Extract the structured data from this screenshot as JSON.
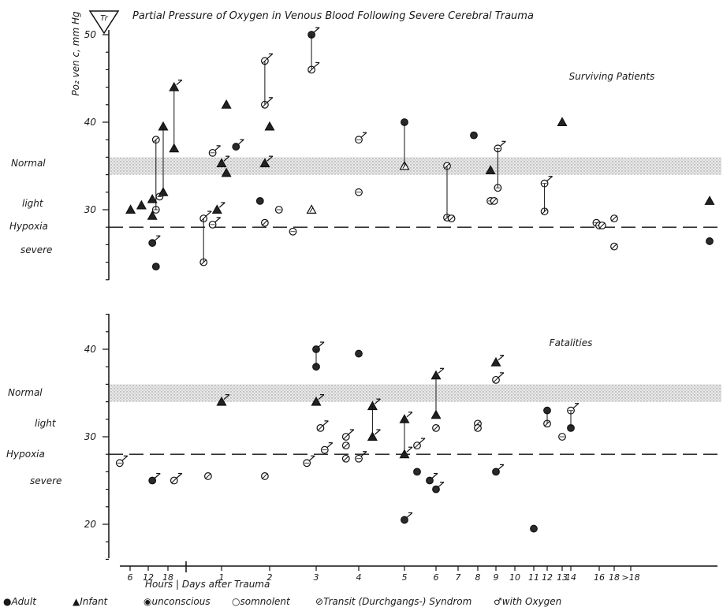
{
  "figure": {
    "badge": "Tr",
    "title": "Partial Pressure of Oxygen in Venous Blood Following Severe Cerebral Trauma",
    "ylabel": "Po₂ ven c, mm Hg",
    "zones": {
      "normal": "Normal",
      "light": "light",
      "hypoxia": "Hypoxia",
      "severe": "severe"
    },
    "x_caption": "Hours | Days after Trauma",
    "legend": [
      "●Adult",
      "▲Infant",
      "◉unconscious",
      "○somnolent",
      "⊘Transit (Durchgangs-) Syndrom",
      "♂with Oxygen"
    ]
  },
  "chart_data": [
    {
      "type": "scatter",
      "title": "Surviving Patients",
      "ylim": [
        22,
        51
      ],
      "yticks": [
        30,
        40,
        50
      ],
      "normal_band": [
        34,
        36
      ],
      "hypoxia_threshold": 28,
      "xticks": [
        "6",
        "12",
        "18",
        "1",
        "2",
        "3",
        "4",
        "5",
        "6",
        "7",
        "8",
        "9",
        "10",
        "11",
        "12",
        "13",
        "14",
        "16",
        "18",
        ">18"
      ],
      "points": [
        {
          "x": "6h",
          "y": 30,
          "symbol": "infant"
        },
        {
          "x": "9h",
          "y": 30.5,
          "symbol": "infant"
        },
        {
          "x": "12h",
          "y": 29.3,
          "symbol": "infant"
        },
        {
          "x": "12h",
          "y": 31.2,
          "symbol": "infant"
        },
        {
          "x": "12h",
          "y": 26.2,
          "symbol": "adult",
          "oxygen": true
        },
        {
          "x": "13h",
          "y": 23.5,
          "symbol": "adult"
        },
        {
          "x": "13h",
          "y": 38,
          "symbol": "transit"
        },
        {
          "x": "13h",
          "y": 30,
          "symbol": "somnolent"
        },
        {
          "x": "14h",
          "y": 31.5,
          "symbol": "somnolent"
        },
        {
          "x": "15h",
          "y": 39.5,
          "symbol": "infant"
        },
        {
          "x": "15h",
          "y": 32,
          "symbol": "infant"
        },
        {
          "x": "18h",
          "y": 44,
          "symbol": "infant",
          "oxygen": true
        },
        {
          "x": "18h",
          "y": 37,
          "symbol": "infant"
        },
        {
          "x": "day 0.6",
          "y": 29,
          "symbol": "transit",
          "oxygen": true
        },
        {
          "x": "day 0.6",
          "y": 24,
          "symbol": "transit"
        },
        {
          "x": "day 0.8",
          "y": 36.5,
          "symbol": "somnolent",
          "oxygen": true
        },
        {
          "x": "day 0.8",
          "y": 28.3,
          "symbol": "somnolent",
          "oxygen": true
        },
        {
          "x": "day 0.9",
          "y": 30,
          "symbol": "infant",
          "oxygen": true
        },
        {
          "x": "1",
          "y": 35.3,
          "symbol": "infant",
          "oxygen": true
        },
        {
          "x": "1.1",
          "y": 42,
          "symbol": "infant"
        },
        {
          "x": "1.1",
          "y": 34.2,
          "symbol": "infant"
        },
        {
          "x": "1.3",
          "y": 37.2,
          "symbol": "adult",
          "oxygen": true
        },
        {
          "x": "1.8",
          "y": 31,
          "symbol": "adult"
        },
        {
          "x": "1.9",
          "y": 47,
          "symbol": "transit",
          "oxygen": true
        },
        {
          "x": "1.9",
          "y": 42,
          "symbol": "transit",
          "oxygen": true
        },
        {
          "x": "1.9",
          "y": 35.3,
          "symbol": "infant",
          "oxygen": true
        },
        {
          "x": "1.9",
          "y": 28.5,
          "symbol": "transit"
        },
        {
          "x": "2",
          "y": 39.5,
          "symbol": "infant"
        },
        {
          "x": "2.2",
          "y": 30,
          "symbol": "somnolent"
        },
        {
          "x": "2.5",
          "y": 27.5,
          "symbol": "somnolent"
        },
        {
          "x": "2.9",
          "y": 50,
          "symbol": "adult",
          "oxygen": true
        },
        {
          "x": "2.9",
          "y": 46,
          "symbol": "transit",
          "oxygen": true
        },
        {
          "x": "2.9",
          "y": 30,
          "symbol": "infant",
          "transit": true
        },
        {
          "x": "4",
          "y": 38,
          "symbol": "somnolent",
          "oxygen": true
        },
        {
          "x": "4",
          "y": 32,
          "symbol": "somnolent"
        },
        {
          "x": "5",
          "y": 40,
          "symbol": "adult"
        },
        {
          "x": "5",
          "y": 35,
          "symbol": "infant",
          "transit": true
        },
        {
          "x": "6.5",
          "y": 35,
          "symbol": "transit"
        },
        {
          "x": "6.5",
          "y": 29.1,
          "symbol": "transit"
        },
        {
          "x": "6.7",
          "y": 29,
          "symbol": "transit"
        },
        {
          "x": "7.8",
          "y": 38.5,
          "symbol": "adult"
        },
        {
          "x": "8.7",
          "y": 34.5,
          "symbol": "infant"
        },
        {
          "x": "8.7",
          "y": 31,
          "symbol": "somnolent"
        },
        {
          "x": "8.9",
          "y": 31,
          "symbol": "transit"
        },
        {
          "x": "9.1",
          "y": 37,
          "symbol": "somnolent",
          "oxygen": true
        },
        {
          "x": "9.1",
          "y": 32.5,
          "symbol": "somnolent"
        },
        {
          "x": "11.8",
          "y": 33,
          "symbol": "somnolent",
          "oxygen": true
        },
        {
          "x": "11.8",
          "y": 29.8,
          "symbol": "transit"
        },
        {
          "x": "13",
          "y": 40,
          "symbol": "infant"
        },
        {
          "x": "15.8",
          "y": 28.5,
          "symbol": "somnolent"
        },
        {
          "x": "16",
          "y": 28.2,
          "symbol": "somnolent"
        },
        {
          "x": "16.4",
          "y": 28.2,
          "symbol": "transit"
        },
        {
          "x": "18",
          "y": 29,
          "symbol": "transit"
        },
        {
          "x": "18",
          "y": 25.8,
          "symbol": "transit"
        },
        {
          "x": ">18",
          "y": 31,
          "symbol": "infant"
        },
        {
          "x": ">18",
          "y": 26.4,
          "symbol": "adult"
        }
      ]
    },
    {
      "type": "scatter",
      "title": "Fatalities",
      "ylim": [
        16,
        44
      ],
      "yticks": [
        20,
        30,
        40
      ],
      "normal_band": [
        34,
        36
      ],
      "hypoxia_threshold": 28,
      "xticks": [
        "6",
        "12",
        "18",
        "1",
        "2",
        "3",
        "4",
        "5",
        "6",
        "7",
        "8",
        "9",
        "10",
        "11",
        "12",
        "13",
        "14",
        "16",
        "18",
        ">18"
      ],
      "points": [
        {
          "x": "3h",
          "y": 27,
          "symbol": "somnolent",
          "oxygen": true
        },
        {
          "x": "12h",
          "y": 25,
          "symbol": "adult",
          "oxygen": true
        },
        {
          "x": "18h",
          "y": 25,
          "symbol": "transit",
          "oxygen": true
        },
        {
          "x": "day 0.7",
          "y": 25.5,
          "symbol": "transit"
        },
        {
          "x": "1",
          "y": 34,
          "symbol": "infant",
          "oxygen": true
        },
        {
          "x": "1.9",
          "y": 25.5,
          "symbol": "transit"
        },
        {
          "x": "2.8",
          "y": 27,
          "symbol": "somnolent",
          "oxygen": true
        },
        {
          "x": "3",
          "y": 40,
          "symbol": "adult",
          "oxygen": true
        },
        {
          "x": "3",
          "y": 38,
          "symbol": "adult"
        },
        {
          "x": "3",
          "y": 34,
          "symbol": "infant",
          "oxygen": true
        },
        {
          "x": "3.1",
          "y": 31,
          "symbol": "transit",
          "oxygen": true
        },
        {
          "x": "3.2",
          "y": 28.5,
          "symbol": "somnolent",
          "oxygen": true
        },
        {
          "x": "3.7",
          "y": 30,
          "symbol": "transit",
          "oxygen": true
        },
        {
          "x": "3.7",
          "y": 29,
          "symbol": "transit"
        },
        {
          "x": "3.7",
          "y": 27.5,
          "symbol": "transit"
        },
        {
          "x": "4",
          "y": 39.5,
          "symbol": "adult"
        },
        {
          "x": "4",
          "y": 27.5,
          "symbol": "somnolent",
          "oxygen": true
        },
        {
          "x": "4.3",
          "y": 33.5,
          "symbol": "infant",
          "oxygen": true
        },
        {
          "x": "4.3",
          "y": 30,
          "symbol": "infant",
          "oxygen": true
        },
        {
          "x": "5",
          "y": 32,
          "symbol": "infant",
          "oxygen": true
        },
        {
          "x": "5",
          "y": 28,
          "symbol": "infant",
          "oxygen": true
        },
        {
          "x": "5",
          "y": 20.5,
          "symbol": "adult",
          "oxygen": true
        },
        {
          "x": "5.4",
          "y": 29,
          "symbol": "transit",
          "oxygen": true
        },
        {
          "x": "5.4",
          "y": 26,
          "symbol": "adult"
        },
        {
          "x": "5.8",
          "y": 25,
          "symbol": "adult",
          "oxygen": true
        },
        {
          "x": "6",
          "y": 37,
          "symbol": "infant",
          "oxygen": true
        },
        {
          "x": "6",
          "y": 32.5,
          "symbol": "infant"
        },
        {
          "x": "6",
          "y": 31,
          "symbol": "transit"
        },
        {
          "x": "6",
          "y": 24,
          "symbol": "adult",
          "oxygen": true
        },
        {
          "x": "8",
          "y": 31.5,
          "symbol": "transit"
        },
        {
          "x": "8",
          "y": 31,
          "symbol": "transit"
        },
        {
          "x": "9",
          "y": 38.5,
          "symbol": "infant",
          "oxygen": true
        },
        {
          "x": "9",
          "y": 36.5,
          "symbol": "transit",
          "oxygen": true
        },
        {
          "x": "9",
          "y": 26,
          "symbol": "adult",
          "oxygen": true
        },
        {
          "x": "11",
          "y": 19.5,
          "symbol": "adult"
        },
        {
          "x": "12",
          "y": 33,
          "symbol": "adult"
        },
        {
          "x": "12",
          "y": 31.5,
          "symbol": "transit"
        },
        {
          "x": "13",
          "y": 30,
          "symbol": "somnolent"
        },
        {
          "x": "14",
          "y": 33,
          "symbol": "somnolent",
          "oxygen": true
        },
        {
          "x": "14",
          "y": 31,
          "symbol": "adult"
        }
      ]
    }
  ]
}
